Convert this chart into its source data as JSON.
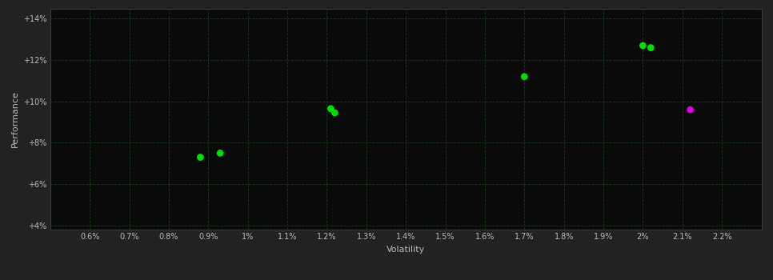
{
  "background_color": "#222222",
  "plot_bg_color": "#0a0a0a",
  "grid_color": "#1a3a1a",
  "text_color": "#bbbbbb",
  "xlabel": "Volatility",
  "ylabel": "Performance",
  "xlim": [
    0.005,
    0.023
  ],
  "ylim": [
    0.038,
    0.145
  ],
  "xticks": [
    0.006,
    0.007,
    0.008,
    0.009,
    0.01,
    0.011,
    0.012,
    0.013,
    0.014,
    0.015,
    0.016,
    0.017,
    0.018,
    0.019,
    0.02,
    0.021,
    0.022
  ],
  "xtick_labels": [
    "0.6%",
    "0.7%",
    "0.8%",
    "0.9%",
    "1%",
    "1.1%",
    "1.2%",
    "1.3%",
    "1.4%",
    "1.5%",
    "1.6%",
    "1.7%",
    "1.8%",
    "1.9%",
    "2%",
    "2.1%",
    "2.2%"
  ],
  "yticks": [
    0.04,
    0.06,
    0.08,
    0.1,
    0.12,
    0.14
  ],
  "ytick_labels": [
    "+4%",
    "+6%",
    "+8%",
    "+10%",
    "+12%",
    "+14%"
  ],
  "green_points": [
    [
      0.0088,
      0.073
    ],
    [
      0.0093,
      0.075
    ],
    [
      0.0121,
      0.0965
    ],
    [
      0.0122,
      0.0945
    ],
    [
      0.017,
      0.112
    ],
    [
      0.02,
      0.127
    ],
    [
      0.0202,
      0.126
    ]
  ],
  "magenta_points": [
    [
      0.0212,
      0.096
    ]
  ],
  "green_color": "#00dd00",
  "magenta_color": "#dd00dd",
  "marker_size": 40,
  "marker_shape": "D"
}
